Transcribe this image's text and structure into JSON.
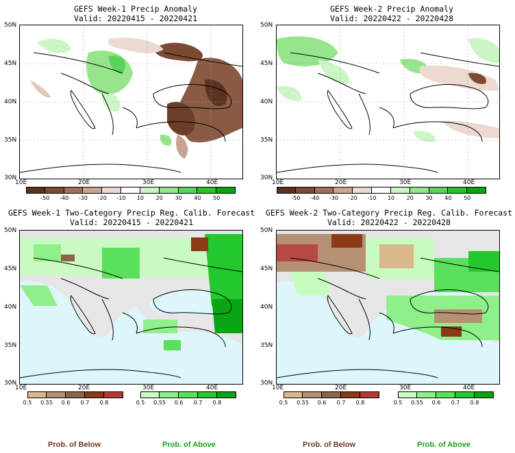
{
  "panels": [
    {
      "title": "GEFS Week-1 Precip Anomaly",
      "valid": "Valid: 20220415 - 20220421"
    },
    {
      "title": "GEFS Week-2 Precip Anomaly",
      "valid": "Valid: 20220422 - 20220428"
    },
    {
      "title": "GEFS Week-1 Two-Category Precip Reg. Calib. Forecast",
      "valid": "Valid: 20220415 - 20220421"
    },
    {
      "title": "GEFS Week-2 Two-Category Precip Reg. Calib. Forecast",
      "valid": "Valid: 20220422 - 20220428"
    }
  ],
  "lat_ticks": [
    "50N",
    "45N",
    "40N",
    "35N",
    "30N"
  ],
  "lon_ticks": [
    "10E",
    "20E",
    "30E",
    "40E"
  ],
  "anomaly_colorbar": {
    "labels": [
      "-50",
      "-40",
      "-30",
      "-20",
      "-10",
      "10",
      "20",
      "30",
      "40",
      "50"
    ],
    "colors": [
      "#5a3220",
      "#7b4a33",
      "#a0705a",
      "#c9a393",
      "#ecd9cf",
      "#ffffff",
      "#ccf5c5",
      "#96e58c",
      "#5bd35a",
      "#2fbf2f",
      "#0d9f14"
    ]
  },
  "below_colorbar": {
    "labels": [
      "0.5",
      "0.55",
      "0.6",
      "0.7",
      "0.8"
    ],
    "colors": [
      "#d9b98c",
      "#b59072",
      "#8c6448",
      "#8a3a16",
      "#b33838"
    ]
  },
  "above_colorbar": {
    "labels": [
      "0.5",
      "0.55",
      "0.6",
      "0.7",
      "0.8"
    ],
    "colors": [
      "#c8fbc0",
      "#8ff08a",
      "#5ae05c",
      "#22c82e",
      "#0aa514"
    ]
  },
  "prob_below": "Prob. of Below",
  "prob_above": "Prob. of Above",
  "colors": {
    "sea": "#dcf6fb",
    "land_gray": "#e6e6e6",
    "below_text": "#6b3b1e",
    "above_text": "#14a614"
  }
}
